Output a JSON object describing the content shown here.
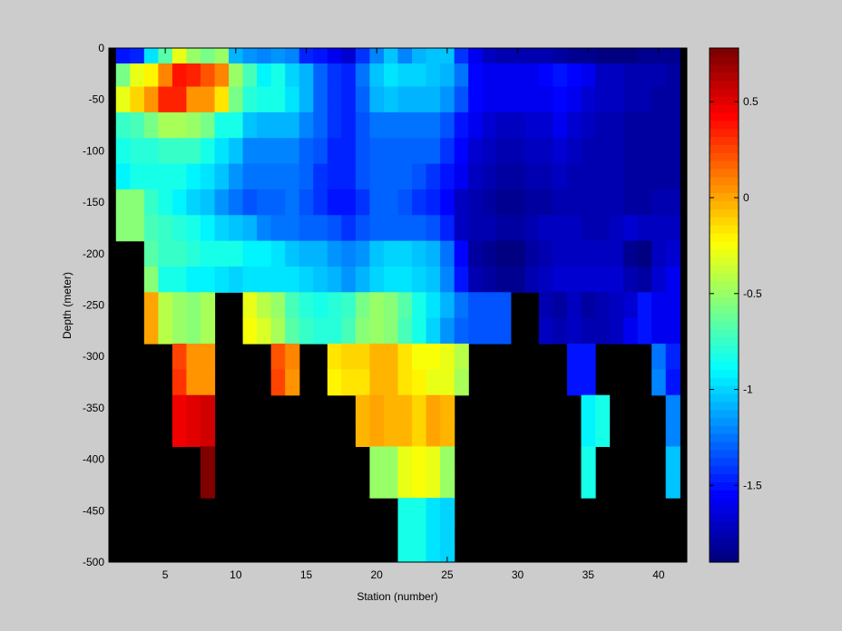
{
  "chart_data": {
    "type": "heatmap",
    "xlabel": "Station (number)",
    "ylabel": "Depth (meter)",
    "xlim": [
      1,
      42
    ],
    "ylim": [
      -500,
      0
    ],
    "xticks": [
      5,
      10,
      15,
      20,
      25,
      30,
      35,
      40
    ],
    "yticks": [
      0,
      -50,
      -100,
      -150,
      -200,
      -250,
      -300,
      -350,
      -400,
      -450,
      -500
    ],
    "colorbar": {
      "range": [
        -1.9,
        0.78
      ],
      "ticks": [
        0.5,
        0,
        -0.5,
        -1,
        -1.5
      ],
      "colormap": "jet",
      "levels": 64
    },
    "missing_color": "#000000",
    "stations": [
      2,
      3,
      4,
      5,
      6,
      7,
      8,
      9,
      10,
      11,
      12,
      13,
      14,
      15,
      16,
      17,
      18,
      19,
      20,
      21,
      22,
      23,
      24,
      25,
      26,
      27,
      28,
      29,
      30,
      31,
      32,
      33,
      34,
      35,
      36,
      37,
      38,
      39,
      40,
      41
    ],
    "depths": [
      -5,
      -25,
      -50,
      -75,
      -100,
      -125,
      -150,
      -175,
      -200,
      -225,
      -250,
      -275,
      -300,
      -325,
      -350,
      -375,
      -400,
      -425,
      -450,
      -475,
      -500
    ],
    "values": [
      [
        -1.5,
        -1.45,
        -0.95,
        -0.65,
        -0.3,
        -0.5,
        -0.6,
        -0.5,
        -1.1,
        -1.15,
        -1.2,
        -1.15,
        -1.2,
        -1.45,
        -1.5,
        -1.6,
        -1.65,
        -1.4,
        -1.2,
        -1.05,
        -1.2,
        -1.1,
        -1.05,
        -1.05,
        -1.4,
        -1.6,
        -1.7,
        -1.75,
        -1.75,
        -1.75,
        -1.75,
        -1.8,
        -1.85,
        -1.85,
        -1.9,
        -1.9,
        -1.9,
        -1.85,
        -1.85,
        -1.85
      ],
      [
        -0.6,
        -0.3,
        -0.2,
        0.1,
        0.4,
        0.35,
        0.2,
        0.1,
        -0.5,
        -0.7,
        -0.9,
        -0.85,
        -1.0,
        -1.1,
        -1.3,
        -1.4,
        -1.45,
        -1.25,
        -1.05,
        -0.95,
        -1.0,
        -1.0,
        -1.05,
        -1.1,
        -1.25,
        -1.55,
        -1.6,
        -1.6,
        -1.6,
        -1.6,
        -1.55,
        -1.5,
        -1.55,
        -1.6,
        -1.7,
        -1.7,
        -1.75,
        -1.75,
        -1.75,
        -1.8
      ],
      [
        -0.3,
        -0.1,
        0.05,
        0.35,
        0.35,
        0.05,
        0.05,
        -0.15,
        -0.6,
        -0.8,
        -0.85,
        -0.85,
        -0.95,
        -1.1,
        -1.3,
        -1.4,
        -1.45,
        -1.3,
        -1.1,
        -1.05,
        -1.1,
        -1.1,
        -1.1,
        -1.15,
        -1.35,
        -1.55,
        -1.6,
        -1.6,
        -1.6,
        -1.6,
        -1.6,
        -1.55,
        -1.6,
        -1.65,
        -1.7,
        -1.7,
        -1.75,
        -1.75,
        -1.8,
        -1.8
      ],
      [
        -0.75,
        -0.7,
        -0.6,
        -0.45,
        -0.45,
        -0.5,
        -0.6,
        -0.85,
        -0.85,
        -1.05,
        -1.1,
        -1.1,
        -1.1,
        -1.2,
        -1.3,
        -1.4,
        -1.45,
        -1.35,
        -1.25,
        -1.25,
        -1.25,
        -1.25,
        -1.25,
        -1.35,
        -1.5,
        -1.6,
        -1.65,
        -1.7,
        -1.7,
        -1.65,
        -1.65,
        -1.6,
        -1.65,
        -1.7,
        -1.75,
        -1.75,
        -1.8,
        -1.8,
        -1.8,
        -1.8
      ],
      [
        -0.85,
        -0.8,
        -0.8,
        -0.75,
        -0.75,
        -0.75,
        -0.85,
        -0.95,
        -1.05,
        -1.2,
        -1.2,
        -1.2,
        -1.2,
        -1.3,
        -1.35,
        -1.45,
        -1.45,
        -1.35,
        -1.3,
        -1.3,
        -1.3,
        -1.3,
        -1.3,
        -1.4,
        -1.55,
        -1.65,
        -1.7,
        -1.75,
        -1.75,
        -1.7,
        -1.7,
        -1.65,
        -1.7,
        -1.75,
        -1.75,
        -1.75,
        -1.8,
        -1.8,
        -1.8,
        -1.8
      ],
      [
        -0.9,
        -0.85,
        -0.85,
        -0.85,
        -0.85,
        -0.9,
        -0.95,
        -1.05,
        -1.15,
        -1.25,
        -1.25,
        -1.25,
        -1.25,
        -1.3,
        -1.4,
        -1.45,
        -1.45,
        -1.35,
        -1.3,
        -1.3,
        -1.3,
        -1.35,
        -1.4,
        -1.5,
        -1.6,
        -1.7,
        -1.75,
        -1.8,
        -1.8,
        -1.75,
        -1.75,
        -1.7,
        -1.75,
        -1.75,
        -1.75,
        -1.75,
        -1.8,
        -1.8,
        -1.8,
        -1.8
      ],
      [
        -0.55,
        -0.55,
        -0.75,
        -0.85,
        -0.9,
        -1.0,
        -1.05,
        -1.15,
        -1.25,
        -1.35,
        -1.3,
        -1.3,
        -1.25,
        -1.35,
        -1.4,
        -1.5,
        -1.5,
        -1.4,
        -1.3,
        -1.3,
        -1.35,
        -1.4,
        -1.45,
        -1.55,
        -1.7,
        -1.75,
        -1.8,
        -1.85,
        -1.85,
        -1.8,
        -1.8,
        -1.75,
        -1.75,
        -1.75,
        -1.75,
        -1.75,
        -1.8,
        -1.8,
        -1.75,
        -1.75
      ],
      [
        -0.55,
        -0.55,
        -0.7,
        -0.75,
        -0.8,
        -0.85,
        -0.9,
        -1.0,
        -1.05,
        -1.1,
        -1.2,
        -1.25,
        -1.25,
        -1.3,
        -1.3,
        -1.35,
        -1.4,
        -1.35,
        -1.3,
        -1.3,
        -1.3,
        -1.3,
        -1.35,
        -1.45,
        -1.7,
        -1.75,
        -1.75,
        -1.8,
        -1.8,
        -1.75,
        -1.7,
        -1.7,
        -1.7,
        -1.75,
        -1.75,
        -1.7,
        -1.65,
        -1.7,
        -1.7,
        -1.7
      ],
      [
        null,
        null,
        -0.65,
        -0.75,
        -0.75,
        -0.8,
        -0.85,
        -0.85,
        -0.85,
        -0.9,
        -0.9,
        -0.95,
        -1.05,
        -1.1,
        -1.1,
        -1.15,
        -1.2,
        -1.15,
        -1.05,
        -1.0,
        -1.0,
        -1.05,
        -1.1,
        -1.25,
        -1.55,
        -1.8,
        -1.85,
        -1.9,
        -1.9,
        -1.8,
        -1.75,
        -1.7,
        -1.7,
        -1.7,
        -1.7,
        -1.7,
        -1.85,
        -1.9,
        -1.7,
        -1.65
      ],
      [
        null,
        null,
        -0.55,
        -0.85,
        -0.85,
        -0.9,
        -0.9,
        -0.95,
        -1.0,
        -0.95,
        -0.95,
        -0.95,
        -0.95,
        -1.0,
        -1.05,
        -1.1,
        -1.15,
        -1.1,
        -1.0,
        -0.95,
        -0.95,
        -1.0,
        -1.05,
        -1.2,
        -1.5,
        -1.75,
        -1.8,
        -1.85,
        -1.85,
        -1.75,
        -1.7,
        -1.65,
        -1.65,
        -1.65,
        -1.65,
        -1.65,
        -1.75,
        -1.8,
        -1.65,
        -1.6
      ],
      [
        null,
        null,
        0.0,
        -0.4,
        -0.5,
        -0.55,
        -0.45,
        null,
        null,
        -0.3,
        -0.4,
        -0.5,
        -0.7,
        -0.8,
        -0.85,
        -0.8,
        -0.75,
        -0.6,
        -0.5,
        -0.55,
        -0.65,
        -0.85,
        -0.95,
        -1.1,
        -1.25,
        -1.35,
        -1.35,
        -1.35,
        null,
        null,
        -1.75,
        -1.8,
        -1.7,
        -1.8,
        -1.75,
        -1.7,
        -1.65,
        -1.5,
        -1.6,
        -1.6
      ],
      [
        null,
        null,
        0.0,
        -0.4,
        -0.5,
        -0.55,
        -0.45,
        null,
        null,
        -0.25,
        -0.35,
        -0.45,
        -0.65,
        -0.75,
        -0.8,
        -0.8,
        -0.7,
        -0.55,
        -0.5,
        -0.55,
        -0.7,
        -0.85,
        -1.0,
        -1.15,
        -1.3,
        -1.35,
        -1.35,
        -1.35,
        null,
        null,
        -1.7,
        -1.75,
        -1.7,
        -1.75,
        -1.75,
        -1.7,
        -1.6,
        -1.5,
        -1.6,
        -1.6
      ],
      [
        null,
        null,
        null,
        null,
        0.25,
        0.05,
        0.05,
        null,
        null,
        null,
        null,
        0.2,
        0.1,
        null,
        null,
        -0.15,
        -0.1,
        -0.1,
        -0.05,
        -0.05,
        -0.15,
        -0.25,
        -0.25,
        -0.3,
        -0.4,
        null,
        null,
        null,
        null,
        null,
        null,
        null,
        -1.5,
        -1.5,
        null,
        null,
        null,
        null,
        -1.25,
        -1.45
      ],
      [
        null,
        null,
        null,
        null,
        0.3,
        0.05,
        0.05,
        null,
        null,
        null,
        null,
        0.25,
        0.05,
        null,
        null,
        -0.2,
        -0.15,
        -0.15,
        -0.05,
        -0.05,
        -0.15,
        -0.2,
        -0.3,
        -0.3,
        -0.45,
        null,
        null,
        null,
        null,
        null,
        null,
        null,
        -1.5,
        -1.5,
        null,
        null,
        null,
        null,
        -1.2,
        -1.5
      ],
      [
        null,
        null,
        null,
        null,
        0.45,
        0.5,
        0.55,
        null,
        null,
        null,
        null,
        null,
        null,
        null,
        null,
        null,
        null,
        -0.05,
        0.0,
        -0.05,
        -0.05,
        -0.1,
        0.0,
        -0.05,
        null,
        null,
        null,
        null,
        null,
        null,
        null,
        null,
        null,
        -0.9,
        -0.85,
        null,
        null,
        null,
        null,
        -1.2
      ],
      [
        null,
        null,
        null,
        null,
        0.45,
        0.5,
        0.55,
        null,
        null,
        null,
        null,
        null,
        null,
        null,
        null,
        null,
        null,
        -0.05,
        0.0,
        -0.05,
        -0.05,
        -0.1,
        0.0,
        -0.05,
        null,
        null,
        null,
        null,
        null,
        null,
        null,
        null,
        null,
        -0.9,
        -0.85,
        null,
        null,
        null,
        null,
        -1.2
      ],
      [
        null,
        null,
        null,
        null,
        null,
        null,
        0.75,
        null,
        null,
        null,
        null,
        null,
        null,
        null,
        null,
        null,
        null,
        null,
        -0.5,
        -0.5,
        -0.3,
        -0.25,
        -0.3,
        -0.5,
        null,
        null,
        null,
        null,
        null,
        null,
        null,
        null,
        null,
        -0.85,
        null,
        null,
        null,
        null,
        null,
        -1.05
      ],
      [
        null,
        null,
        null,
        null,
        null,
        null,
        0.75,
        null,
        null,
        null,
        null,
        null,
        null,
        null,
        null,
        null,
        null,
        null,
        -0.5,
        -0.5,
        -0.3,
        -0.25,
        -0.3,
        -0.5,
        null,
        null,
        null,
        null,
        null,
        null,
        null,
        null,
        null,
        -0.85,
        null,
        null,
        null,
        null,
        null,
        -1.05
      ],
      [
        null,
        null,
        null,
        null,
        null,
        null,
        null,
        null,
        null,
        null,
        null,
        null,
        null,
        null,
        null,
        null,
        null,
        null,
        null,
        null,
        -0.85,
        -0.85,
        -0.95,
        -1.0,
        null,
        null,
        null,
        null,
        null,
        null,
        null,
        null,
        null,
        null,
        null,
        null,
        null,
        null,
        null,
        null
      ],
      [
        null,
        null,
        null,
        null,
        null,
        null,
        null,
        null,
        null,
        null,
        null,
        null,
        null,
        null,
        null,
        null,
        null,
        null,
        null,
        null,
        -0.85,
        -0.85,
        -0.95,
        -1.0,
        null,
        null,
        null,
        null,
        null,
        null,
        null,
        null,
        null,
        null,
        null,
        null,
        null,
        null,
        null,
        null
      ],
      [
        null,
        null,
        null,
        null,
        null,
        null,
        null,
        null,
        null,
        null,
        null,
        null,
        null,
        null,
        null,
        null,
        null,
        null,
        null,
        null,
        -0.85,
        -0.85,
        -0.95,
        -1.0,
        null,
        null,
        null,
        null,
        null,
        null,
        null,
        null,
        null,
        null,
        null,
        null,
        null,
        null,
        null,
        null
      ]
    ]
  }
}
